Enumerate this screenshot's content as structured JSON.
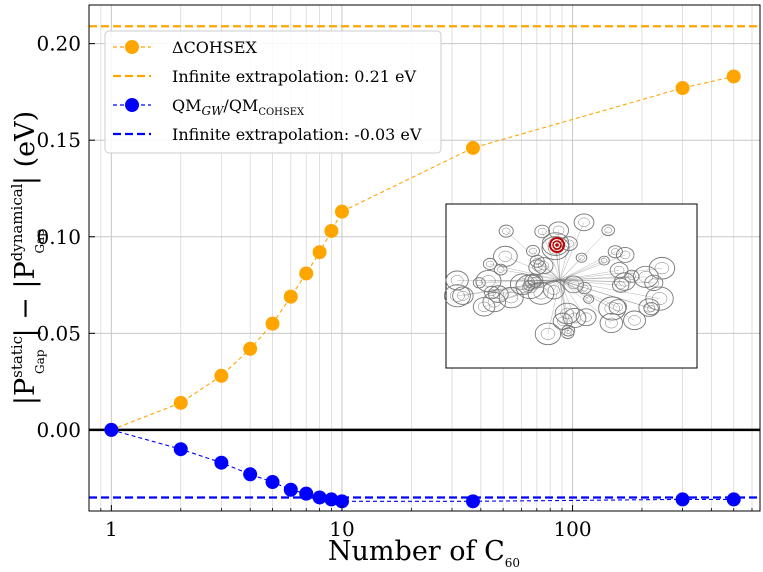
{
  "chart_data": {
    "type": "line",
    "xscale": "log",
    "xlim": [
      0.8,
      650
    ],
    "ylim": [
      -0.042,
      0.22
    ],
    "x_ticks": [
      1,
      10,
      100
    ],
    "y_ticks": [
      0.0,
      0.05,
      0.1,
      0.15,
      0.2
    ],
    "y_tick_labels": [
      "0.00",
      "0.05",
      "0.10",
      "0.15",
      "0.20"
    ],
    "x_tick_labels": [
      "1",
      "10",
      "100"
    ],
    "xlabel": {
      "text": "Number of C",
      "sub": "60"
    },
    "ylabel": {
      "p1": "|P",
      "p1_sup": "static",
      "p1_sub": "Gap",
      "mid": "| − |P",
      "p2_sup": "dynamical",
      "p2_sub": "Gap",
      "end": "| (eV)"
    },
    "grid": true,
    "legend_position": "upper-left",
    "series": [
      {
        "name": "ΔCOHSEX",
        "color": "#ffa500",
        "style": "dashed-with-markers",
        "x": [
          1,
          2,
          3,
          4,
          5,
          6,
          7,
          8,
          9,
          10,
          37,
          300,
          500
        ],
        "y": [
          0.0,
          0.014,
          0.028,
          0.042,
          0.055,
          0.069,
          0.081,
          0.092,
          0.103,
          0.113,
          0.146,
          0.177,
          0.183
        ]
      },
      {
        "name_parts": {
          "a": "QM",
          "a_sub": "GW",
          "mid": "/QM",
          "b_sub": "COHSEX"
        },
        "color": "#0000ff",
        "style": "dashed-with-markers",
        "x": [
          1,
          2,
          3,
          4,
          5,
          6,
          7,
          8,
          9,
          10,
          37,
          300,
          500
        ],
        "y": [
          0.0,
          -0.01,
          -0.017,
          -0.023,
          -0.027,
          -0.031,
          -0.033,
          -0.035,
          -0.036,
          -0.037,
          -0.037,
          -0.036,
          -0.036
        ]
      }
    ],
    "hlines": [
      {
        "name": "Infinite extrapolation: 0.21 eV",
        "y": 0.209,
        "color": "#ffa500",
        "style": "dashed"
      },
      {
        "name": "Infinite extrapolation: -0.03 eV",
        "y": -0.035,
        "color": "#0000ff",
        "style": "dashed"
      },
      {
        "y": 0.0,
        "color": "#000000",
        "style": "solid"
      }
    ]
  },
  "legend": {
    "entry1": "ΔCOHSEX",
    "entry2": "Infinite extrapolation: 0.21 eV",
    "entry3_a": "QM",
    "entry3_a_sub": "GW",
    "entry3_mid": "/QM",
    "entry3_b_sub": "COHSEX",
    "entry4": "Infinite extrapolation: -0.03 eV"
  },
  "inset": {
    "frame_color": "#000000",
    "cluster_color": "#777777",
    "highlight_color": "#c00000"
  }
}
